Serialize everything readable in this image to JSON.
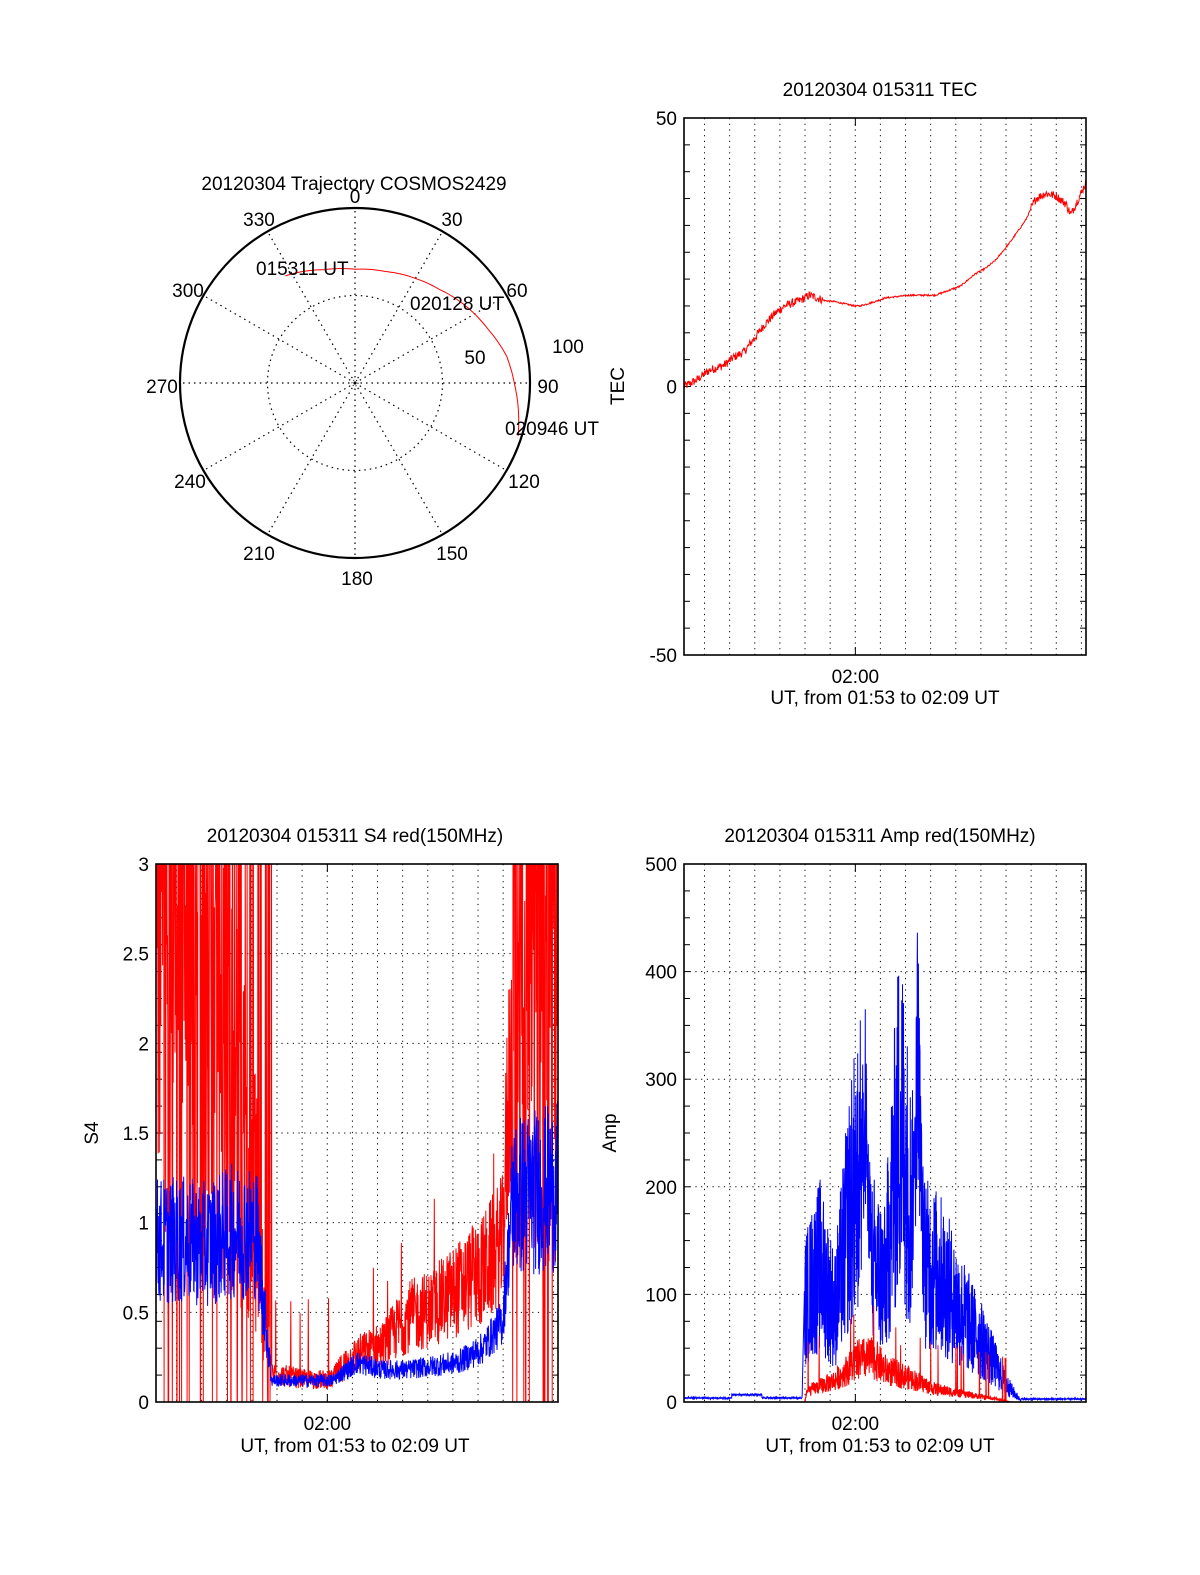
{
  "chart_data": [
    {
      "id": "trajectory",
      "type": "polar",
      "title": "20120304 Trajectory COSMOS2429",
      "angle_labels": [
        "0",
        "30",
        "60",
        "90",
        "120",
        "150",
        "180",
        "210",
        "240",
        "270",
        "300",
        "330"
      ],
      "radial_labels": [
        "50",
        "100"
      ],
      "radial_range": [
        0,
        100
      ],
      "grid": true,
      "trajectory_color": "#ff0000",
      "trajectory": [
        {
          "az": 327,
          "zen": 73
        },
        {
          "az": 345,
          "zen": 67
        },
        {
          "az": 0,
          "zen": 65
        },
        {
          "az": 15,
          "zen": 66
        },
        {
          "az": 30,
          "zen": 69
        },
        {
          "az": 42,
          "zen": 72
        },
        {
          "az": 55,
          "zen": 77
        },
        {
          "az": 68,
          "zen": 82
        },
        {
          "az": 80,
          "zen": 88
        },
        {
          "az": 90,
          "zen": 91
        },
        {
          "az": 103,
          "zen": 96
        },
        {
          "az": 108,
          "zen": 98
        }
      ],
      "annotations": [
        {
          "text": "015311 UT",
          "az": 327,
          "zen": 73
        },
        {
          "text": "020128 UT",
          "az": 42,
          "zen": 72
        },
        {
          "text": "020946 UT",
          "az": 108,
          "zen": 98
        }
      ]
    },
    {
      "id": "tec",
      "type": "line",
      "title": "20120304 015311 TEC",
      "xlabel": "UT, from 01:53 to 02:09 UT",
      "ylabel": "TEC",
      "xlim_minutes": [
        0,
        16
      ],
      "x_start": "01:53:11",
      "x_tick_label": "02:00",
      "x_tick_minute": 6.82,
      "ylim": [
        -50,
        50
      ],
      "yticks": [
        -50,
        0,
        50
      ],
      "grid": true,
      "color": "#ff0000",
      "series": [
        {
          "name": "TEC",
          "points": [
            [
              0,
              0
            ],
            [
              0.5,
              1.2
            ],
            [
              1,
              3
            ],
            [
              1.6,
              4
            ],
            [
              2,
              5.5
            ],
            [
              2.4,
              6.5
            ],
            [
              2.8,
              9
            ],
            [
              3.2,
              11.5
            ],
            [
              3.6,
              13.5
            ],
            [
              4,
              15
            ],
            [
              4.6,
              16
            ],
            [
              5,
              17
            ],
            [
              5.6,
              16
            ],
            [
              6,
              15.8
            ],
            [
              6.8,
              15
            ],
            [
              7,
              15
            ],
            [
              7.6,
              15.8
            ],
            [
              8,
              16.5
            ],
            [
              9,
              17
            ],
            [
              10,
              17
            ],
            [
              10.6,
              18
            ],
            [
              11,
              18.7
            ],
            [
              11.6,
              21
            ],
            [
              12,
              22
            ],
            [
              12.4,
              23.5
            ],
            [
              13,
              27
            ],
            [
              13.6,
              31
            ],
            [
              14,
              35
            ],
            [
              14.4,
              36
            ],
            [
              14.8,
              35.5
            ],
            [
              15.2,
              34
            ],
            [
              15.4,
              32
            ],
            [
              15.8,
              36
            ],
            [
              16,
              38
            ],
            [
              16.4,
              42
            ],
            [
              16.8,
              45
            ],
            [
              17,
              47.5
            ]
          ]
        }
      ]
    },
    {
      "id": "s4",
      "type": "line",
      "title": "20120304 015311 S4 red(150MHz)",
      "xlabel": "UT, from 01:53 to 02:09 UT",
      "ylabel": "S4",
      "xlim_minutes": [
        0,
        16
      ],
      "x_tick_label": "02:00",
      "x_tick_minute": 6.82,
      "ylim": [
        0,
        3
      ],
      "yticks": [
        0,
        0.5,
        1,
        1.5,
        2,
        2.5,
        3
      ],
      "grid": true,
      "series": [
        {
          "name": "red",
          "color": "#ff0000",
          "envelope": [
            [
              0,
              2.6
            ],
            [
              1,
              2.6
            ],
            [
              2,
              2.4
            ],
            [
              3,
              2.0
            ],
            [
              4,
              1.2
            ],
            [
              4.6,
              0.15
            ],
            [
              6,
              0.12
            ],
            [
              7,
              0.12
            ],
            [
              7.5,
              0.2
            ],
            [
              8,
              0.25
            ],
            [
              9,
              0.3
            ],
            [
              10,
              0.45
            ],
            [
              11,
              0.5
            ],
            [
              12,
              0.6
            ],
            [
              13,
              0.7
            ],
            [
              13.8,
              0.85
            ],
            [
              14.2,
              2.2
            ],
            [
              16,
              2.6
            ]
          ]
        },
        {
          "name": "blue",
          "color": "#0000ff",
          "envelope": [
            [
              0,
              0.9
            ],
            [
              1,
              0.9
            ],
            [
              2,
              0.88
            ],
            [
              3,
              0.95
            ],
            [
              4,
              0.95
            ],
            [
              4.6,
              0.12
            ],
            [
              6,
              0.12
            ],
            [
              7,
              0.12
            ],
            [
              8,
              0.22
            ],
            [
              9,
              0.18
            ],
            [
              10,
              0.18
            ],
            [
              11,
              0.2
            ],
            [
              12,
              0.22
            ],
            [
              13,
              0.3
            ],
            [
              13.8,
              0.45
            ],
            [
              14.2,
              1.15
            ],
            [
              16,
              1.2
            ]
          ]
        }
      ]
    },
    {
      "id": "amp",
      "type": "line",
      "title": "20120304 015311 Amp red(150MHz)",
      "xlabel": "UT, from 01:53 to 02:09 UT",
      "ylabel": "Amp",
      "xlim_minutes": [
        0,
        16
      ],
      "x_tick_label": "02:00",
      "x_tick_minute": 6.82,
      "ylim": [
        0,
        500
      ],
      "yticks": [
        0,
        100,
        200,
        300,
        400,
        500
      ],
      "grid": true,
      "series": [
        {
          "name": "blue",
          "color": "#0000ff",
          "envelope": [
            [
              0,
              3
            ],
            [
              3.8,
              3
            ],
            [
              4.7,
              3
            ],
            [
              4.8,
              110
            ],
            [
              5.4,
              150
            ],
            [
              6,
              100
            ],
            [
              6.6,
              210
            ],
            [
              7,
              260
            ],
            [
              7.4,
              160
            ],
            [
              8,
              130
            ],
            [
              8.6,
              320
            ],
            [
              9,
              220
            ],
            [
              9.6,
              150
            ],
            [
              10.2,
              140
            ],
            [
              11,
              100
            ],
            [
              12,
              60
            ],
            [
              12.8,
              20
            ],
            [
              13.4,
              2
            ],
            [
              16,
              2
            ]
          ]
        },
        {
          "name": "red",
          "color": "#ff0000",
          "envelope": [
            [
              0,
              0
            ],
            [
              4.8,
              0
            ],
            [
              4.9,
              10
            ],
            [
              6,
              20
            ],
            [
              7,
              40
            ],
            [
              7.6,
              40
            ],
            [
              8,
              30
            ],
            [
              9,
              22
            ],
            [
              10,
              12
            ],
            [
              11,
              8
            ],
            [
              11.8,
              5
            ],
            [
              12.4,
              3
            ],
            [
              13,
              0
            ],
            [
              16,
              0
            ]
          ]
        }
      ],
      "peaks": [
        {
          "minute": 7.2,
          "value": 398
        },
        {
          "minute": 9.3,
          "value": 465
        }
      ]
    }
  ]
}
